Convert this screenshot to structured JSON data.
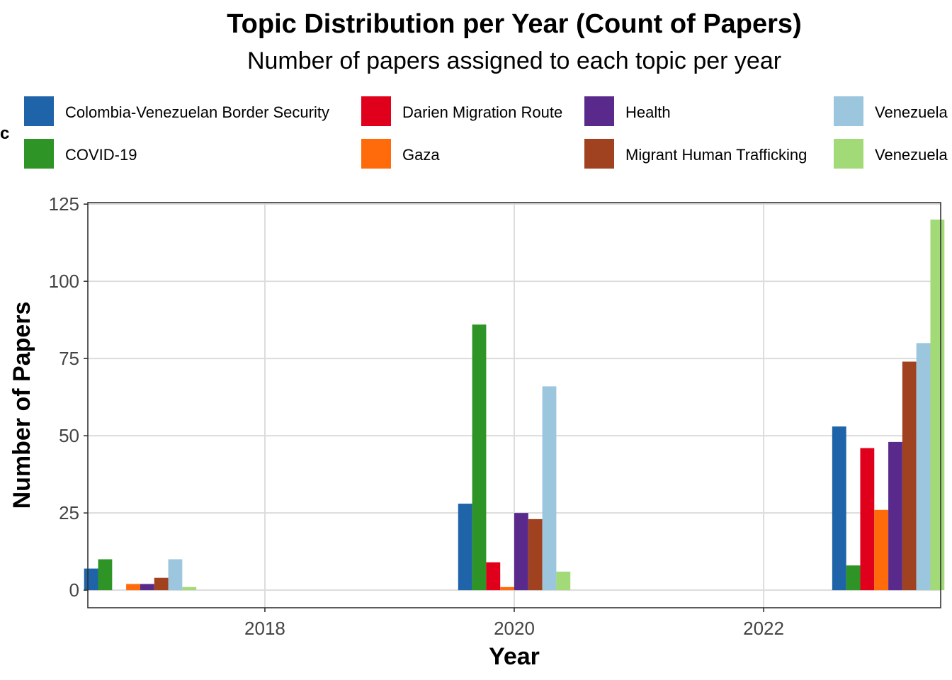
{
  "chart_data": {
    "type": "bar",
    "title": "Topic Distribution per Year (Count of Papers)",
    "subtitle": "Number of papers assigned to each topic per year",
    "xlabel": "Year",
    "ylabel": "Number of Papers",
    "legend_title_fragment": "c",
    "legend_position": "top",
    "grid": true,
    "x": [
      2017,
      2020,
      2023
    ],
    "xlim": [
      2016.58,
      2023.42
    ],
    "x_ticks": [
      2018,
      2020,
      2022
    ],
    "ylim": [
      -5.7,
      125.5
    ],
    "y_ticks": [
      0,
      25,
      50,
      75,
      100,
      125
    ],
    "series": [
      {
        "name": "Colombia-Venezuelan Border Security",
        "color": "#1f63a8",
        "values": [
          7,
          28,
          53
        ]
      },
      {
        "name": "COVID-19",
        "color": "#2e9425",
        "values": [
          10,
          86,
          8
        ]
      },
      {
        "name": "Darien Migration Route",
        "color": "#e0001b",
        "values": [
          0,
          9,
          46
        ]
      },
      {
        "name": "Gaza",
        "color": "#ff6a0a",
        "values": [
          2,
          1,
          26
        ]
      },
      {
        "name": "Health",
        "color": "#592a8c",
        "values": [
          2,
          25,
          48
        ]
      },
      {
        "name": "Migrant Human Trafficking",
        "color": "#a0421f",
        "values": [
          4,
          23,
          74
        ]
      },
      {
        "name": "Venezuela",
        "color": "#9cc5de",
        "values": [
          10,
          66,
          80
        ]
      },
      {
        "name": "Venezuela",
        "color": "#a3da78",
        "values": [
          1,
          6,
          120
        ]
      }
    ]
  }
}
